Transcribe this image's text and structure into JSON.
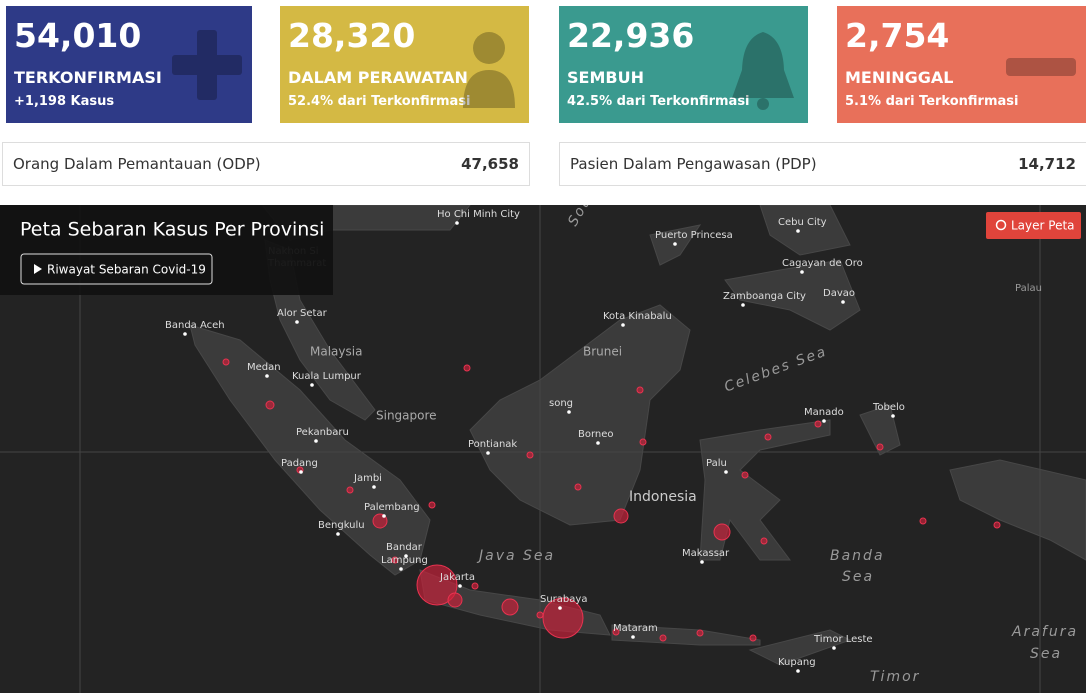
{
  "stats": [
    {
      "value": "54,010",
      "label": "TERKONFIRMASI",
      "detail": "+1,198 Kasus"
    },
    {
      "value": "28,320",
      "label": "DALAM PERAWATAN",
      "detail": "52.4% dari Terkonfirmasi"
    },
    {
      "value": "22,936",
      "label": "SEMBUH",
      "detail": "42.5% dari Terkonfirmasi"
    },
    {
      "value": "2,754",
      "label": "MENINGGAL",
      "detail": "5.1% dari Terkonfirmasi"
    }
  ],
  "monitoring": [
    {
      "label": "Orang Dalam Pemantauan (ODP)",
      "value": "47,658"
    },
    {
      "label": "Pasien Dalam Pengawasan (PDP)",
      "value": "14,712"
    }
  ],
  "map": {
    "title": "Peta Sebaran Kasus Per Provinsi",
    "history_button": "Riwayat Sebaran Covid-19",
    "layer_button": "Layer Peta",
    "places": [
      "Ho Chi Minh City",
      "Nakhon Si",
      "Thammarat",
      "Puerto Princesa",
      "Cebu City",
      "Cagayan de Oro",
      "Zamboanga City",
      "Davao",
      "Palau",
      "Banda Aceh",
      "Alor Setar",
      "Kota Kinabalu",
      "Malaysia",
      "Brunei",
      "Medan",
      "Kuala Lumpur",
      "Celebes Sea",
      "Singapore",
      "song",
      "Manado",
      "Tobelo",
      "Pekanbaru",
      "Borneo",
      "Pontianak",
      "Padang",
      "Palu",
      "Jambi",
      "Indonesia",
      "Palembang",
      "Bengkulu",
      "Makassar",
      "Banda",
      "Sea",
      "Java Sea",
      "Bandar",
      "Lampung",
      "Jakarta",
      "Surabaya",
      "Mataram",
      "Timor Leste",
      "Arafura",
      "Sea",
      "Kupang",
      "Timor",
      "Sou"
    ]
  }
}
